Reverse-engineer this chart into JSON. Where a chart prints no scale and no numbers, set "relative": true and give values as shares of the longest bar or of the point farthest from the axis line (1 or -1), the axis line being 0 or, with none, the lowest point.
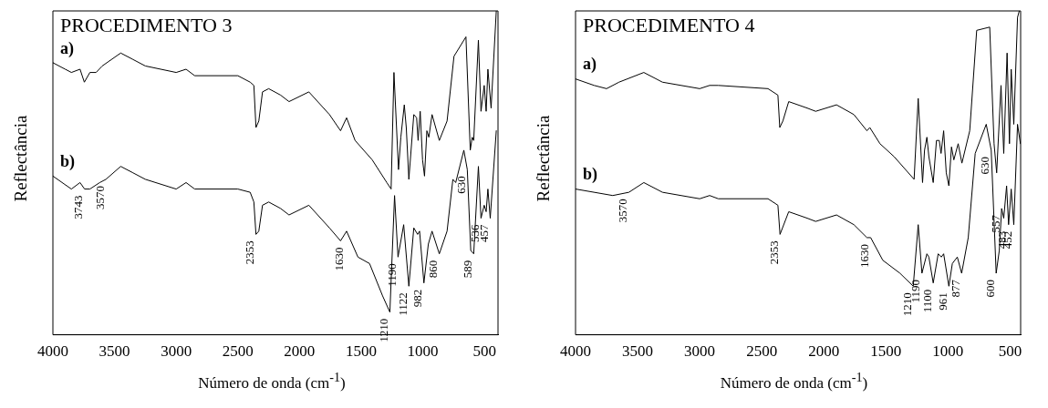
{
  "chart_data": [
    {
      "type": "line",
      "title": "PROCEDIMENTO 3",
      "xlabel": "Número de onda (cm$^{-1}$)",
      "ylabel": "Reflectância",
      "relative": true,
      "xlim": [
        4000,
        390
      ],
      "xticks": [
        4000,
        3500,
        3000,
        2500,
        2000,
        1500,
        1000,
        500
      ],
      "grid": false,
      "legend": false,
      "series": [
        {
          "name": "a)",
          "color": "#000000",
          "x": [
            4000,
            3900,
            3850,
            3780,
            3745,
            3700,
            3650,
            3600,
            3450,
            3350,
            3250,
            3000,
            2920,
            2850,
            2500,
            2400,
            2370,
            2353,
            2330,
            2300,
            2250,
            2153,
            2085,
            1924,
            1757,
            1667,
            1618,
            1549,
            1410,
            1292,
            1257,
            1234,
            1197,
            1178,
            1150,
            1134,
            1113,
            1073,
            1050,
            1038,
            1021,
            1002,
            986,
            967,
            951,
            925,
            866,
            803,
            747,
            650,
            615,
            599,
            587,
            549,
            528,
            502,
            486,
            472,
            446,
            404
          ],
          "values": [
            0.84,
            0.82,
            0.81,
            0.82,
            0.78,
            0.81,
            0.81,
            0.83,
            0.87,
            0.85,
            0.83,
            0.81,
            0.82,
            0.8,
            0.8,
            0.78,
            0.77,
            0.64,
            0.66,
            0.75,
            0.76,
            0.74,
            0.72,
            0.75,
            0.68,
            0.63,
            0.67,
            0.6,
            0.54,
            0.47,
            0.45,
            0.81,
            0.51,
            0.61,
            0.71,
            0.64,
            0.48,
            0.68,
            0.67,
            0.6,
            0.69,
            0.54,
            0.49,
            0.63,
            0.61,
            0.68,
            0.6,
            0.66,
            0.86,
            0.92,
            0.57,
            0.61,
            0.6,
            0.91,
            0.69,
            0.77,
            0.69,
            0.82,
            0.7,
            1.0
          ]
        },
        {
          "name": "b)",
          "color": "#000000",
          "x": [
            4000,
            3850,
            3780,
            3743,
            3700,
            3620,
            3570,
            3450,
            3350,
            3250,
            3000,
            2920,
            2850,
            2500,
            2400,
            2370,
            2353,
            2330,
            2300,
            2250,
            2153,
            2085,
            1924,
            1757,
            1667,
            1618,
            1526,
            1432,
            1326,
            1267,
            1229,
            1201,
            1155,
            1113,
            1073,
            1042,
            1026,
            991,
            955,
            925,
            866,
            803,
            756,
            733,
            667,
            639,
            611,
            587,
            549,
            528,
            502,
            486,
            472,
            453,
            404
          ],
          "values": [
            0.49,
            0.45,
            0.47,
            0.45,
            0.45,
            0.47,
            0.48,
            0.52,
            0.5,
            0.48,
            0.45,
            0.47,
            0.45,
            0.45,
            0.44,
            0.41,
            0.31,
            0.32,
            0.4,
            0.41,
            0.39,
            0.37,
            0.4,
            0.33,
            0.29,
            0.32,
            0.24,
            0.22,
            0.12,
            0.07,
            0.43,
            0.24,
            0.34,
            0.15,
            0.33,
            0.31,
            0.32,
            0.16,
            0.28,
            0.32,
            0.25,
            0.32,
            0.48,
            0.47,
            0.57,
            0.51,
            0.26,
            0.25,
            0.52,
            0.36,
            0.4,
            0.38,
            0.45,
            0.36,
            0.63
          ]
        }
      ],
      "annotations": [
        {
          "text": "3743",
          "x": 3743,
          "y": 0.45
        },
        {
          "text": "3570",
          "x": 3570,
          "y": 0.48
        },
        {
          "text": "2353",
          "x": 2353,
          "y": 0.31
        },
        {
          "text": "1630",
          "x": 1630,
          "y": 0.29
        },
        {
          "text": "1210",
          "x": 1267,
          "y": 0.07
        },
        {
          "text": "1190",
          "x": 1201,
          "y": 0.24
        },
        {
          "text": "1122",
          "x": 1113,
          "y": 0.15
        },
        {
          "text": "982",
          "x": 991,
          "y": 0.16
        },
        {
          "text": "860",
          "x": 866,
          "y": 0.25
        },
        {
          "text": "630",
          "x": 639,
          "y": 0.51
        },
        {
          "text": "589",
          "x": 587,
          "y": 0.25
        },
        {
          "text": "536",
          "x": 528,
          "y": 0.36
        },
        {
          "text": "457",
          "x": 453,
          "y": 0.36
        }
      ]
    },
    {
      "type": "line",
      "title": "PROCEDIMENTO 4",
      "xlabel": "Número de onda (cm$^{-1}$)",
      "ylabel": "Reflectância",
      "relative": true,
      "xlim": [
        4000,
        415
      ],
      "xticks": [
        4000,
        3500,
        3000,
        2500,
        2000,
        1500,
        1000,
        500
      ],
      "grid": false,
      "legend": false,
      "series": [
        {
          "name": "a)",
          "color": "#000000",
          "x": [
            4000,
            3850,
            3750,
            3650,
            3450,
            3300,
            3000,
            2920,
            2850,
            2450,
            2370,
            2355,
            2330,
            2283,
            2134,
            2066,
            1898,
            1758,
            1653,
            1630,
            1548,
            1434,
            1273,
            1240,
            1205,
            1189,
            1170,
            1154,
            1119,
            1093,
            1070,
            1056,
            1035,
            1014,
            993,
            972,
            953,
            918,
            888,
            825,
            769,
            664,
            629,
            608,
            573,
            551,
            524,
            505,
            491,
            470,
            440,
            426
          ],
          "values": [
            0.79,
            0.77,
            0.76,
            0.78,
            0.81,
            0.78,
            0.76,
            0.77,
            0.77,
            0.76,
            0.74,
            0.64,
            0.66,
            0.72,
            0.7,
            0.69,
            0.71,
            0.68,
            0.63,
            0.64,
            0.59,
            0.55,
            0.48,
            0.73,
            0.47,
            0.57,
            0.61,
            0.55,
            0.47,
            0.6,
            0.6,
            0.56,
            0.63,
            0.5,
            0.46,
            0.58,
            0.54,
            0.59,
            0.53,
            0.63,
            0.94,
            0.95,
            0.59,
            0.5,
            0.77,
            0.56,
            0.87,
            0.59,
            0.82,
            0.65,
            0.98,
            1.0
          ]
        },
        {
          "name": "b)",
          "color": "#000000",
          "x": [
            4000,
            3700,
            3570,
            3450,
            3300,
            3000,
            2920,
            2850,
            2450,
            2370,
            2353,
            2283,
            2134,
            2066,
            1898,
            1758,
            1653,
            1623,
            1525,
            1387,
            1280,
            1240,
            1210,
            1170,
            1154,
            1119,
            1079,
            1054,
            1035,
            993,
            965,
            925,
            890,
            837,
            781,
            692,
            652,
            612,
            587,
            568,
            551,
            528,
            512,
            491,
            470,
            440,
            417
          ],
          "values": [
            0.45,
            0.43,
            0.44,
            0.47,
            0.44,
            0.42,
            0.43,
            0.42,
            0.42,
            0.4,
            0.31,
            0.38,
            0.36,
            0.35,
            0.37,
            0.34,
            0.3,
            0.3,
            0.23,
            0.19,
            0.15,
            0.34,
            0.19,
            0.25,
            0.24,
            0.16,
            0.25,
            0.24,
            0.25,
            0.15,
            0.22,
            0.24,
            0.19,
            0.3,
            0.56,
            0.65,
            0.57,
            0.19,
            0.26,
            0.39,
            0.36,
            0.46,
            0.34,
            0.45,
            0.34,
            0.65,
            0.59
          ]
        }
      ],
      "annotations": [
        {
          "text": "3570",
          "x": 3570,
          "y": 0.44
        },
        {
          "text": "2353",
          "x": 2353,
          "y": 0.31
        },
        {
          "text": "1630",
          "x": 1623,
          "y": 0.3
        },
        {
          "text": "1210",
          "x": 1280,
          "y": 0.15
        },
        {
          "text": "1190",
          "x": 1210,
          "y": 0.19
        },
        {
          "text": "1100",
          "x": 1119,
          "y": 0.16
        },
        {
          "text": "961",
          "x": 993,
          "y": 0.15
        },
        {
          "text": "877",
          "x": 890,
          "y": 0.19
        },
        {
          "text": "630",
          "x": 652,
          "y": 0.57
        },
        {
          "text": "600",
          "x": 612,
          "y": 0.19
        },
        {
          "text": "557",
          "x": 568,
          "y": 0.39
        },
        {
          "text": "483",
          "x": 512,
          "y": 0.34
        },
        {
          "text": "452",
          "x": 470,
          "y": 0.34
        }
      ]
    }
  ]
}
